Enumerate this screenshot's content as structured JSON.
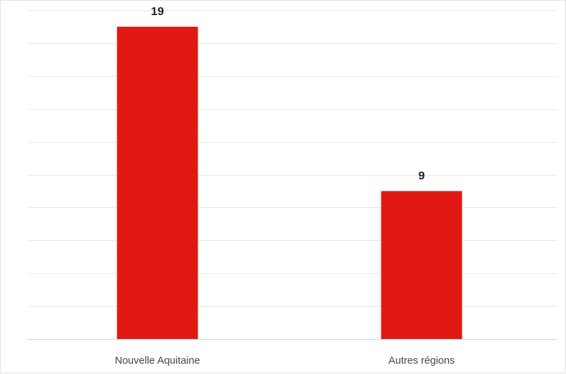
{
  "chart_data": {
    "type": "bar",
    "categories": [
      "Nouvelle Aquitaine",
      "Autres régions"
    ],
    "values": [
      19,
      9
    ],
    "data_labels": [
      "19",
      "9"
    ],
    "title": "",
    "xlabel": "",
    "ylabel": "",
    "ylim": [
      0,
      20
    ],
    "grid": true,
    "legend": "none",
    "colors": {
      "bar": "#e01a12",
      "grid": "#e6e6e6",
      "axis": "#d0d0d0"
    }
  }
}
